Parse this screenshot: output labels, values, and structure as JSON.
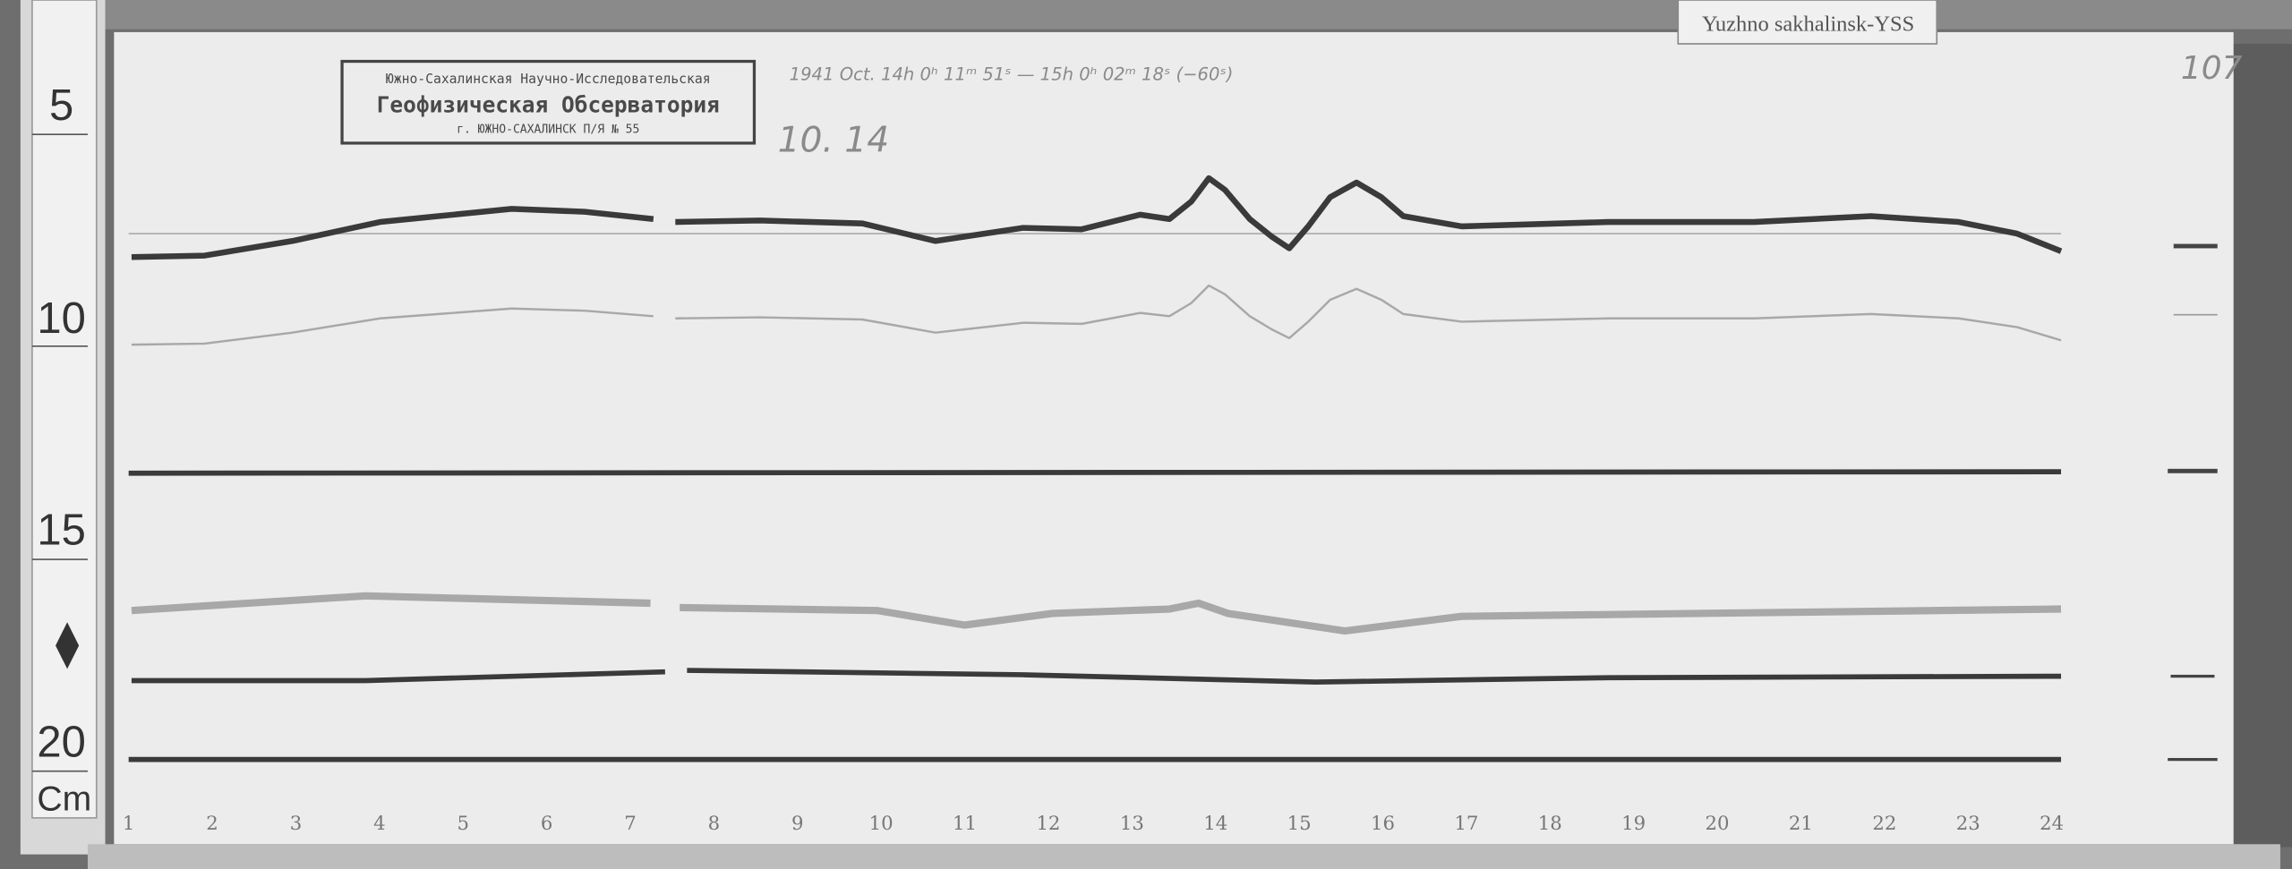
{
  "label_card": {
    "text": "Yuzhno sakhalinsk-YSS"
  },
  "sheet_number": "107",
  "stamp": {
    "line1": "Южно-Сахалинская Научно-Исследовательская",
    "line2": "Геофизическая Обсерватория",
    "line3": "г. ЮЖНО-САХАЛИНСК П/Я № 55"
  },
  "annotations": {
    "header": "1941 Oct. 14h 0ʰ 11ᵐ 51ˢ — 15h 0ʰ 02ᵐ 18ˢ (−60ˢ)",
    "date": "10. 14"
  },
  "ruler": {
    "marks": [
      "5",
      "10",
      "15",
      "20"
    ],
    "unit": "Cm"
  },
  "hours": [
    "1",
    "2",
    "3",
    "4",
    "5",
    "6",
    "7",
    "8",
    "9",
    "10",
    "11",
    "12",
    "13",
    "14",
    "15",
    "16",
    "17",
    "18",
    "19",
    "20",
    "21",
    "22",
    "23",
    "24"
  ],
  "colors": {
    "paper": "#ececec",
    "trace": "#3a3a3a",
    "faint_trace": "#a8a8a8",
    "background": "#6b6b6b"
  }
}
